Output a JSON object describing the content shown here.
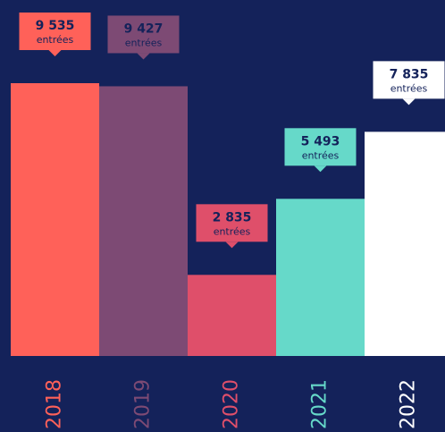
{
  "chart_data": {
    "type": "bar",
    "categories": [
      "2018",
      "2019",
      "2020",
      "2021",
      "2022"
    ],
    "values": [
      9535,
      9427,
      2835,
      5493,
      7835
    ],
    "value_labels": [
      "9 535",
      "9 427",
      "2 835",
      "5 493",
      "7 835"
    ],
    "unit_label": "entrées",
    "colors": [
      "#ff6159",
      "#7d4a74",
      "#df4f6a",
      "#66d9c9",
      "#ffffff"
    ],
    "background": "#14225a"
  }
}
